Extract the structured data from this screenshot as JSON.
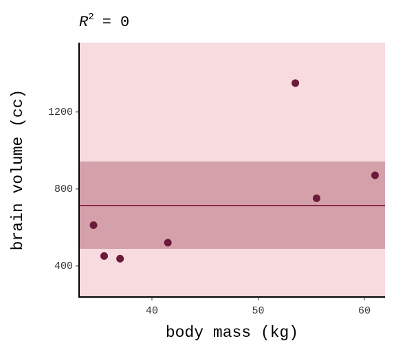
{
  "chart_data": {
    "type": "scatter",
    "title": [
      "R",
      "2",
      "= 0"
    ],
    "x_label": "body mass (kg)",
    "y_label": "brain volume (cc)",
    "x": [
      37,
      35.5,
      34.5,
      41.5,
      55.5,
      61,
      53.5
    ],
    "values": [
      438,
      452,
      612,
      521,
      752,
      871,
      1350
    ],
    "color": "#6b1a3a",
    "mean": 714,
    "band": [
      489,
      943
    ],
    "line_color": "#8b2a4a",
    "band_color": "#d4a0aa",
    "background": "#f8dbdf",
    "xlim": [
      33.14,
      61.94
    ],
    "ylim": [
      239,
      1560
    ],
    "xticks": [
      40,
      50,
      60
    ],
    "yticks": [
      400,
      800,
      1200
    ]
  }
}
